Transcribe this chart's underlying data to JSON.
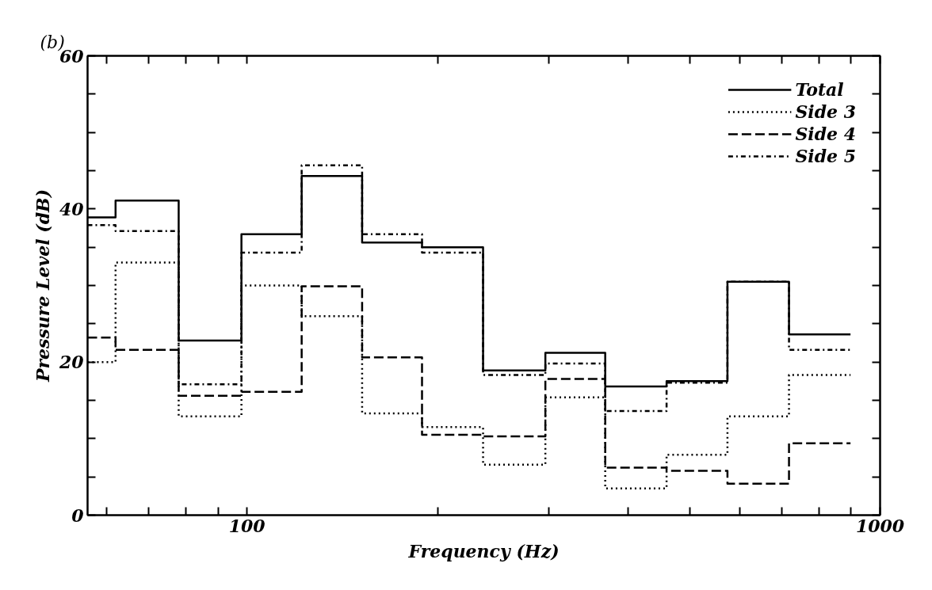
{
  "chart_data": {
    "type": "step",
    "xlabel": "Frequency (Hz)",
    "ylabel": "Pressure Level (dB)",
    "annotations": [
      "(b)"
    ],
    "log": "x",
    "grid": false,
    "legend": "top right",
    "marker": "none",
    "x": [
      56,
      62,
      78,
      98,
      122,
      152,
      189,
      236,
      296,
      368,
      460,
      574,
      718,
      898
    ],
    "xlim": [
      56,
      1000
    ],
    "ylim": [
      0,
      60
    ],
    "xticks": [
      {
        "value": 60,
        "label": null
      },
      {
        "value": 70,
        "label": null
      },
      {
        "value": 80,
        "label": null
      },
      {
        "value": 90,
        "label": null
      },
      100,
      {
        "value": 200,
        "label": null
      },
      {
        "value": 300,
        "label": null
      },
      {
        "value": 400,
        "label": null
      },
      {
        "value": 500,
        "label": null
      },
      {
        "value": 600,
        "label": null
      },
      {
        "value": 700,
        "label": null
      },
      {
        "value": 800,
        "label": null
      },
      {
        "value": 900,
        "label": null
      },
      1000
    ],
    "yticks": [
      0,
      {
        "value": 5,
        "label": null
      },
      {
        "value": 10,
        "label": null
      },
      {
        "value": 15,
        "label": null
      },
      20,
      {
        "value": 25,
        "label": null
      },
      {
        "value": 30,
        "label": null
      },
      {
        "value": 35,
        "label": null
      },
      40,
      {
        "value": 45,
        "label": null
      },
      {
        "value": 50,
        "label": null
      },
      {
        "value": 55,
        "label": null
      },
      60
    ],
    "series": [
      {
        "name": "Total",
        "color": "#000000",
        "line_style": "solid",
        "values": [
          38.9,
          41.1,
          22.8,
          36.7,
          44.3,
          35.6,
          35.0,
          18.9,
          21.2,
          16.8,
          17.5,
          30.5,
          23.6,
          23.6
        ]
      },
      {
        "name": "Side 3",
        "color": "#000000",
        "line_style": "dotted",
        "values": [
          20.0,
          33.0,
          12.9,
          30.0,
          26.0,
          13.3,
          11.5,
          6.6,
          15.4,
          3.5,
          7.9,
          12.9,
          18.3,
          18.3
        ]
      },
      {
        "name": "Side 4",
        "color": "#000000",
        "line_style": "dashed",
        "values": [
          23.2,
          21.6,
          15.6,
          16.1,
          29.9,
          20.6,
          10.5,
          10.3,
          17.8,
          6.2,
          5.8,
          4.1,
          9.4,
          9.4
        ]
      },
      {
        "name": "Side 5",
        "color": "#000000",
        "line_style": "dashdot",
        "values": [
          37.9,
          37.1,
          17.1,
          34.3,
          45.7,
          36.7,
          34.3,
          18.3,
          19.8,
          13.6,
          17.3,
          30.5,
          21.6,
          21.6
        ]
      }
    ]
  }
}
